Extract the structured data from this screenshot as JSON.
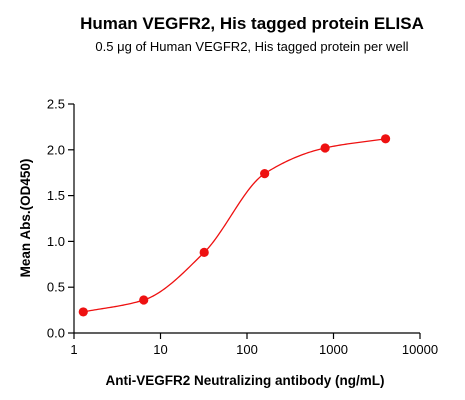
{
  "chart_data": {
    "type": "scatter",
    "title": "Human VEGFR2, His tagged protein ELISA",
    "subtitle": "0.5 μg of Human VEGFR2, His tagged protein per well",
    "xlabel": "Anti-VEGFR2 Neutralizing antibody  (ng/mL)",
    "ylabel": "Mean Abs.(OD450)",
    "x_scale": "log",
    "xlim": [
      1,
      10000
    ],
    "ylim": [
      0.0,
      2.5
    ],
    "x_ticks": [
      1,
      10,
      100,
      1000,
      10000
    ],
    "x_tick_labels": [
      "1",
      "10",
      "100",
      "1000",
      "10000"
    ],
    "y_ticks": [
      0.0,
      0.5,
      1.0,
      1.5,
      2.0,
      2.5
    ],
    "y_tick_labels": [
      "0.0",
      "0.5",
      "1.0",
      "1.5",
      "2.0",
      "2.5"
    ],
    "grid": false,
    "legend": "none",
    "series": [
      {
        "x": [
          1.28,
          6.4,
          32,
          160,
          800,
          4000
        ],
        "y": [
          0.23,
          0.36,
          0.88,
          1.74,
          2.02,
          2.12
        ],
        "marker_color": "#ee1111",
        "fit_curve": true,
        "fit_color": "#ee1111"
      }
    ]
  }
}
